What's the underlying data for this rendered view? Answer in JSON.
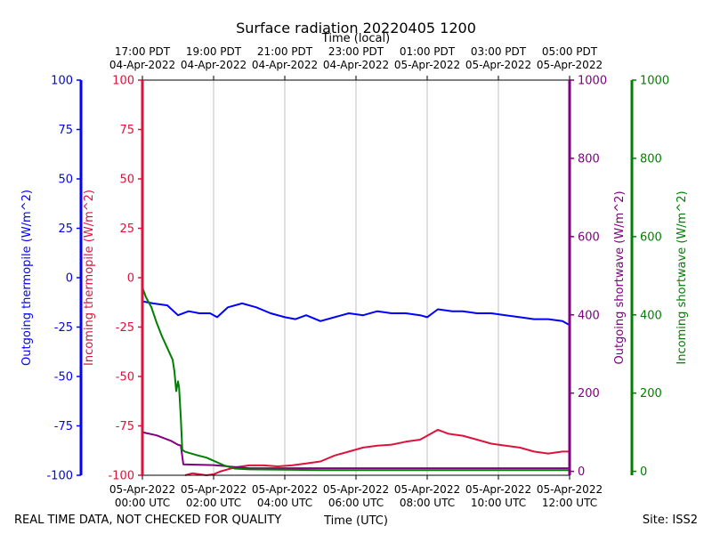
{
  "chart_data": {
    "type": "line",
    "title": "Surface radiation 20220405 1200",
    "top_axis_label": "Time (local)",
    "xlabel": "Time (UTC)",
    "footer_left": "REAL TIME DATA, NOT CHECKED FOR QUALITY",
    "footer_right": "Site: ISS2",
    "x_range_hours_utc": [
      0,
      12
    ],
    "x_ticks_bottom": [
      {
        "hour": 0,
        "line1": "05-Apr-2022",
        "line2": "00:00 UTC"
      },
      {
        "hour": 2,
        "line1": "05-Apr-2022",
        "line2": "02:00 UTC"
      },
      {
        "hour": 4,
        "line1": "05-Apr-2022",
        "line2": "04:00 UTC"
      },
      {
        "hour": 6,
        "line1": "05-Apr-2022",
        "line2": "06:00 UTC"
      },
      {
        "hour": 8,
        "line1": "05-Apr-2022",
        "line2": "08:00 UTC"
      },
      {
        "hour": 10,
        "line1": "05-Apr-2022",
        "line2": "10:00 UTC"
      },
      {
        "hour": 12,
        "line1": "05-Apr-2022",
        "line2": "12:00 UTC"
      }
    ],
    "x_ticks_top": [
      {
        "hour": 0,
        "line1": "17:00 PDT",
        "line2": "04-Apr-2022"
      },
      {
        "hour": 2,
        "line1": "19:00 PDT",
        "line2": "04-Apr-2022"
      },
      {
        "hour": 4,
        "line1": "21:00 PDT",
        "line2": "04-Apr-2022"
      },
      {
        "hour": 6,
        "line1": "23:00 PDT",
        "line2": "04-Apr-2022"
      },
      {
        "hour": 8,
        "line1": "01:00 PDT",
        "line2": "05-Apr-2022"
      },
      {
        "hour": 10,
        "line1": "03:00 PDT",
        "line2": "05-Apr-2022"
      },
      {
        "hour": 12,
        "line1": "05:00 PDT",
        "line2": "05-Apr-2022"
      }
    ],
    "grid": true,
    "y_axes": [
      {
        "id": "outgoing_thermopile",
        "label": "Outgoing thermopile (W/m^2)",
        "color": "#0000ff",
        "range": [
          -100,
          100
        ],
        "ticks": [
          100,
          75,
          50,
          25,
          0,
          -25,
          -50,
          -75,
          -100
        ]
      },
      {
        "id": "incoming_thermopile",
        "label": "Incoming thermopile (W/m^2)",
        "color": "#dc143c",
        "range": [
          -100,
          100
        ],
        "ticks": [
          100,
          75,
          50,
          25,
          0,
          -25,
          -50,
          -75,
          -100
        ]
      },
      {
        "id": "outgoing_shortwave",
        "label": "Outgoing shortwave (W/m^2)",
        "color": "#800080",
        "range": [
          -10,
          1000
        ],
        "ticks": [
          0,
          200,
          400,
          600,
          800,
          1000
        ]
      },
      {
        "id": "incoming_shortwave",
        "label": "Incoming shortwave (W/m^2)",
        "color": "#008000",
        "range": [
          -10,
          1000
        ],
        "ticks": [
          0,
          200,
          400,
          600,
          800,
          1000
        ]
      }
    ],
    "series": [
      {
        "axis": "outgoing_thermopile",
        "color": "#0000ff",
        "x": [
          0,
          0.3,
          0.7,
          1.0,
          1.3,
          1.6,
          1.9,
          2.1,
          2.4,
          2.8,
          3.2,
          3.6,
          4.0,
          4.3,
          4.6,
          5.0,
          5.4,
          5.8,
          6.2,
          6.6,
          7.0,
          7.4,
          7.8,
          8.0,
          8.3,
          8.7,
          9.0,
          9.4,
          9.8,
          10.2,
          10.6,
          11.0,
          11.4,
          11.8,
          12.0
        ],
        "y": [
          -12,
          -13,
          -14,
          -19,
          -17,
          -18,
          -18,
          -20,
          -15,
          -13,
          -15,
          -18,
          -20,
          -21,
          -19,
          -22,
          -20,
          -18,
          -19,
          -17,
          -18,
          -18,
          -19,
          -20,
          -16,
          -17,
          -17,
          -18,
          -18,
          -19,
          -20,
          -21,
          -21,
          -22,
          -24
        ]
      },
      {
        "axis": "incoming_thermopile",
        "color": "#dc143c",
        "x": [
          1.2,
          1.4,
          1.6,
          1.8,
          2.0,
          2.2,
          2.6,
          3.0,
          3.4,
          3.8,
          4.2,
          4.6,
          5.0,
          5.4,
          5.8,
          6.2,
          6.6,
          7.0,
          7.4,
          7.8,
          8.0,
          8.3,
          8.6,
          9.0,
          9.4,
          9.8,
          10.2,
          10.6,
          11.0,
          11.4,
          11.8,
          12.0
        ],
        "y": [
          -100,
          -99,
          -99.5,
          -100,
          -99.5,
          -98,
          -96,
          -95,
          -95,
          -95.5,
          -95,
          -94,
          -93,
          -90,
          -88,
          -86,
          -85,
          -84.5,
          -83,
          -82,
          -80,
          -77,
          -79,
          -80,
          -82,
          -84,
          -85,
          -86,
          -88,
          -89,
          -88,
          -88
        ]
      },
      {
        "axis": "outgoing_shortwave",
        "color": "#800080",
        "x": [
          0,
          0.4,
          0.8,
          1.0,
          1.08,
          1.15,
          1.5,
          2.0,
          3.0,
          4.0,
          5.0,
          6.0,
          7.0,
          8.0,
          9.0,
          10.0,
          11.0,
          12.0
        ],
        "y": [
          100,
          92,
          78,
          68,
          66,
          18,
          17,
          16,
          8,
          8,
          8,
          8,
          8,
          8,
          8,
          8,
          8,
          8
        ]
      },
      {
        "axis": "incoming_shortwave",
        "color": "#008000",
        "x": [
          0,
          0.1,
          0.25,
          0.4,
          0.55,
          0.7,
          0.85,
          0.9,
          0.95,
          1.0,
          1.03,
          1.08,
          1.12,
          1.2,
          1.5,
          1.8,
          2.0,
          2.3,
          2.6,
          3.0,
          4.0,
          5.0,
          6.0,
          7.0,
          8.0,
          9.0,
          10.0,
          11.0,
          12.0
        ],
        "y": [
          470,
          445,
          420,
          380,
          345,
          315,
          285,
          255,
          205,
          230,
          215,
          135,
          55,
          50,
          42,
          35,
          27,
          15,
          7,
          5,
          4,
          3,
          3,
          3,
          3,
          3,
          3,
          3,
          3
        ]
      }
    ]
  }
}
